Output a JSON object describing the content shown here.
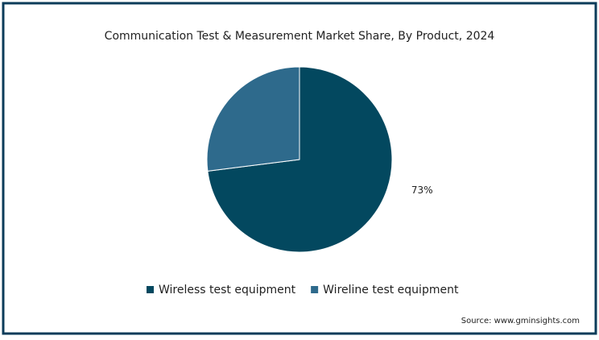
{
  "chart_data": {
    "type": "pie",
    "title": "Communication Test & Measurement Market Share, By Product, 2024",
    "categories": [
      "Wireless test equipment",
      "Wireline test equipment"
    ],
    "values": [
      73,
      27
    ],
    "value_labels": [
      "73%",
      null
    ],
    "colors": [
      "#03485f",
      "#2e6a8c"
    ],
    "legend": "bottom",
    "source": "Source: www.gminsights.com"
  }
}
